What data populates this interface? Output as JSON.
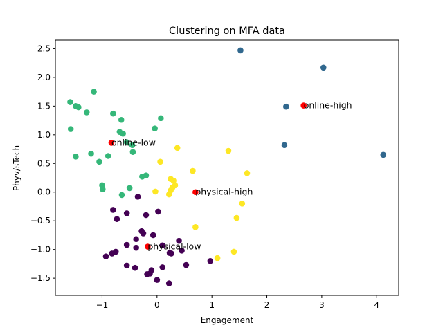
{
  "chart_data": {
    "type": "scatter",
    "title": "Clustering on MFA data",
    "xlabel": "Engagement",
    "ylabel": "Phyv/sTech",
    "xlim": [
      -1.85,
      4.4
    ],
    "ylim": [
      -1.8,
      2.65
    ],
    "xticks": [
      -1,
      0,
      1,
      2,
      3,
      4
    ],
    "yticks": [
      -1.5,
      -1.0,
      -0.5,
      0.0,
      0.5,
      1.0,
      1.5,
      2.0,
      2.5
    ],
    "xtick_labels": [
      "−1",
      "0",
      "1",
      "2",
      "3",
      "4"
    ],
    "ytick_labels": [
      "−1.5",
      "−1.0",
      "−0.5",
      "0.0",
      "0.5",
      "1.0",
      "1.5",
      "2.0",
      "2.5"
    ],
    "grid": false,
    "colors": {
      "online-high": "#31688e",
      "online-low": "#35b779",
      "physical-high": "#fde725",
      "physical-low": "#440154",
      "centroid": "#ff0000"
    },
    "series": [
      {
        "cluster": "online-high",
        "points": [
          [
            1.52,
            2.47
          ],
          [
            3.03,
            2.17
          ],
          [
            2.35,
            1.49
          ],
          [
            2.32,
            0.82
          ],
          [
            4.12,
            0.65
          ]
        ]
      },
      {
        "cluster": "online-low",
        "points": [
          [
            -1.58,
            1.57
          ],
          [
            -1.15,
            1.75
          ],
          [
            -1.48,
            1.5
          ],
          [
            -1.43,
            1.48
          ],
          [
            -1.28,
            1.39
          ],
          [
            -0.8,
            1.37
          ],
          [
            -0.65,
            1.26
          ],
          [
            0.07,
            1.29
          ],
          [
            -1.57,
            1.1
          ],
          [
            -0.04,
            1.11
          ],
          [
            -0.68,
            1.05
          ],
          [
            -0.62,
            1.02
          ],
          [
            -0.55,
            0.87
          ],
          [
            -0.45,
            0.82
          ],
          [
            -0.44,
            0.7
          ],
          [
            -1.2,
            0.67
          ],
          [
            -1.48,
            0.62
          ],
          [
            -0.89,
            0.63
          ],
          [
            -1.05,
            0.53
          ],
          [
            -1.0,
            0.12
          ],
          [
            -0.99,
            0.05
          ],
          [
            -0.5,
            0.07
          ],
          [
            -0.2,
            0.29
          ],
          [
            -0.27,
            0.27
          ],
          [
            -0.64,
            -0.05
          ]
        ]
      },
      {
        "cluster": "physical-high",
        "points": [
          [
            0.37,
            0.77
          ],
          [
            1.3,
            0.72
          ],
          [
            0.06,
            0.53
          ],
          [
            0.65,
            0.37
          ],
          [
            1.64,
            0.33
          ],
          [
            0.25,
            0.23
          ],
          [
            0.3,
            0.2
          ],
          [
            0.33,
            0.12
          ],
          [
            0.28,
            0.08
          ],
          [
            0.25,
            0.03
          ],
          [
            -0.03,
            0.01
          ],
          [
            0.22,
            -0.04
          ],
          [
            1.55,
            -0.2
          ],
          [
            1.45,
            -0.45
          ],
          [
            0.7,
            -0.61
          ],
          [
            1.4,
            -1.04
          ],
          [
            1.1,
            -1.15
          ]
        ]
      },
      {
        "cluster": "physical-low",
        "points": [
          [
            -0.35,
            -0.08
          ],
          [
            -0.8,
            -0.31
          ],
          [
            0.02,
            -0.34
          ],
          [
            -0.55,
            -0.37
          ],
          [
            -0.2,
            -0.4
          ],
          [
            -0.73,
            -0.47
          ],
          [
            -0.28,
            -0.68
          ],
          [
            -0.25,
            -0.72
          ],
          [
            -0.07,
            -0.75
          ],
          [
            -0.38,
            -0.82
          ],
          [
            0.4,
            -0.85
          ],
          [
            -0.55,
            -0.92
          ],
          [
            0.1,
            -0.93
          ],
          [
            -0.38,
            -0.97
          ],
          [
            0.45,
            -1.02
          ],
          [
            -0.75,
            -1.04
          ],
          [
            -0.82,
            -1.07
          ],
          [
            0.23,
            -1.06
          ],
          [
            0.26,
            -1.07
          ],
          [
            -0.93,
            -1.12
          ],
          [
            0.97,
            -1.2
          ],
          [
            -0.55,
            -1.28
          ],
          [
            0.53,
            -1.27
          ],
          [
            -0.4,
            -1.32
          ],
          [
            0.1,
            -1.31
          ],
          [
            -0.1,
            -1.36
          ],
          [
            -0.13,
            -1.42
          ],
          [
            -0.18,
            -1.43
          ],
          [
            0.0,
            -1.53
          ],
          [
            0.22,
            -1.59
          ]
        ]
      }
    ],
    "centroids": [
      {
        "label": "online-high",
        "x": 2.67,
        "y": 1.51
      },
      {
        "label": "online-low",
        "x": -0.83,
        "y": 0.86
      },
      {
        "label": "physical-high",
        "x": 0.7,
        "y": 0.0
      },
      {
        "label": "physical-low",
        "x": -0.17,
        "y": -0.95
      }
    ]
  }
}
